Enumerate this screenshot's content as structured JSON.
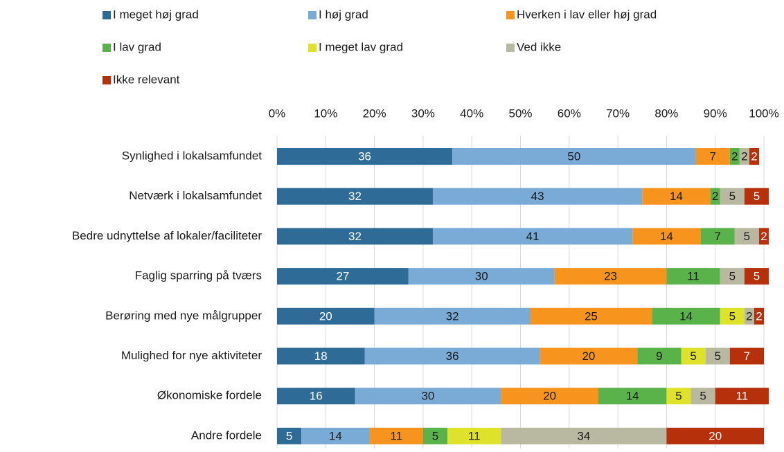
{
  "chart_data": {
    "type": "stacked_bar_horizontal",
    "categories": [
      "Synlighed i lokalsamfundet",
      "Netværk i lokalsamfundet",
      "Bedre udnyttelse af lokaler/faciliteter",
      "Faglig sparring på tværs",
      "Berøring med nye målgrupper",
      "Mulighed for nye aktiviteter",
      "Økonomiske fordele",
      "Andre fordele"
    ],
    "series": [
      {
        "name": "I meget høj grad",
        "color": "#2e6b96",
        "values": [
          36,
          32,
          32,
          27,
          20,
          18,
          16,
          5
        ]
      },
      {
        "name": "I høj grad",
        "color": "#7aaad6",
        "values": [
          50,
          43,
          41,
          30,
          32,
          36,
          30,
          14
        ]
      },
      {
        "name": "Hverken i lav eller høj grad",
        "color": "#f7941d",
        "values": [
          7,
          14,
          14,
          23,
          25,
          20,
          20,
          11
        ]
      },
      {
        "name": "I lav grad",
        "color": "#5ab24b",
        "values": [
          2,
          2,
          7,
          11,
          14,
          9,
          14,
          5
        ]
      },
      {
        "name": "I meget lav grad",
        "color": "#dfe22a",
        "values": [
          null,
          null,
          null,
          null,
          5,
          5,
          5,
          11
        ]
      },
      {
        "name": "Ved ikke",
        "color": "#b9b8a0",
        "values": [
          2,
          5,
          5,
          5,
          2,
          5,
          5,
          34
        ]
      },
      {
        "name": "Ikke relevant",
        "color": "#b5300b",
        "values": [
          2,
          5,
          2,
          5,
          2,
          7,
          11,
          20
        ]
      }
    ],
    "xlim": [
      0,
      100
    ],
    "xticks": [
      {
        "value": 0,
        "label": "0%"
      },
      {
        "value": 10,
        "label": "10%"
      },
      {
        "value": 20,
        "label": "20%"
      },
      {
        "value": 30,
        "label": "30%"
      },
      {
        "value": 40,
        "label": "40%"
      },
      {
        "value": 50,
        "label": "50%"
      },
      {
        "value": 60,
        "label": "60%"
      },
      {
        "value": 70,
        "label": "70%"
      },
      {
        "value": 80,
        "label": "80%"
      },
      {
        "value": 90,
        "label": "90%"
      },
      {
        "value": 100,
        "label": "100%"
      }
    ],
    "grid": true,
    "legend": "top"
  }
}
